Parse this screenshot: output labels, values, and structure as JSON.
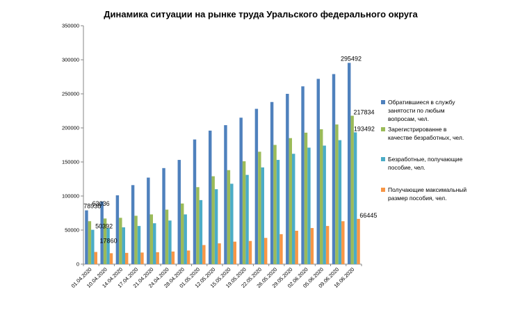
{
  "chart_data": {
    "type": "bar",
    "title": "Динамика ситуации  на рынке труда Уральского федерального округа",
    "xlabel": "",
    "ylabel": "",
    "ylim": [
      0,
      350000
    ],
    "yticks": [
      0,
      50000,
      100000,
      150000,
      200000,
      250000,
      300000,
      350000
    ],
    "ytick_labels": [
      "0",
      "50000",
      "100000",
      "150000",
      "200000",
      "250000",
      "300000",
      "350000"
    ],
    "grid": false,
    "legend_position": "right",
    "categories": [
      "01.04.2020",
      "10.04.2020",
      "14.04.2020",
      "17.04.2020",
      "21.04.2020",
      "24.04.2020",
      "28.04.2020",
      "01.05.2020",
      "12.05.2020",
      "15.05.2020",
      "19.05.2020",
      "22.05.2020",
      "26.05.2020",
      "29.05.2020",
      "02.06.2020",
      "05.06.2020",
      "09.06.2020",
      "16.06.2020"
    ],
    "series": [
      {
        "name_lines": [
          "Обратившиеся в службу",
          "занятости по любым",
          "вопросам, чел."
        ],
        "color": "#4F81BD",
        "values": [
          78938,
          92000,
          101000,
          116000,
          127000,
          141000,
          153000,
          183000,
          196000,
          204000,
          215000,
          228000,
          238000,
          250000,
          261000,
          272000,
          279000,
          295492
        ]
      },
      {
        "name_lines": [
          "Зарегистрированне в",
          "качестве безработных, чел."
        ],
        "color": "#9BBB59",
        "values": [
          63036,
          67000,
          68000,
          71000,
          73000,
          80000,
          89000,
          113000,
          129000,
          138000,
          151000,
          165000,
          175000,
          185000,
          193000,
          198000,
          205000,
          217834
        ]
      },
      {
        "name_lines": [
          "Безработные, получающие",
          "пособие, чел."
        ],
        "color": "#4BACC6",
        "values": [
          50392,
          53000,
          54000,
          56000,
          60000,
          64000,
          73000,
          94000,
          110000,
          118000,
          131000,
          142000,
          153000,
          162000,
          171000,
          174000,
          182000,
          193492
        ]
      },
      {
        "name_lines": [
          "Получающие максимальный",
          "размер пособия, чел."
        ],
        "color": "#F79646",
        "values": [
          17860,
          16000,
          16500,
          17000,
          17500,
          18500,
          20000,
          28000,
          30500,
          33000,
          34000,
          38500,
          44000,
          49000,
          53000,
          56000,
          63000,
          66445
        ]
      }
    ],
    "data_labels": [
      {
        "series": 0,
        "index": 0,
        "text": "78938"
      },
      {
        "series": 1,
        "index": 0,
        "text": "63036"
      },
      {
        "series": 2,
        "index": 0,
        "text": "50392"
      },
      {
        "series": 3,
        "index": 0,
        "text": "17860"
      },
      {
        "series": 0,
        "index": 17,
        "text": "295492"
      },
      {
        "series": 1,
        "index": 17,
        "text": "217834"
      },
      {
        "series": 2,
        "index": 17,
        "text": "193492"
      },
      {
        "series": 3,
        "index": 17,
        "text": "66445"
      }
    ]
  }
}
